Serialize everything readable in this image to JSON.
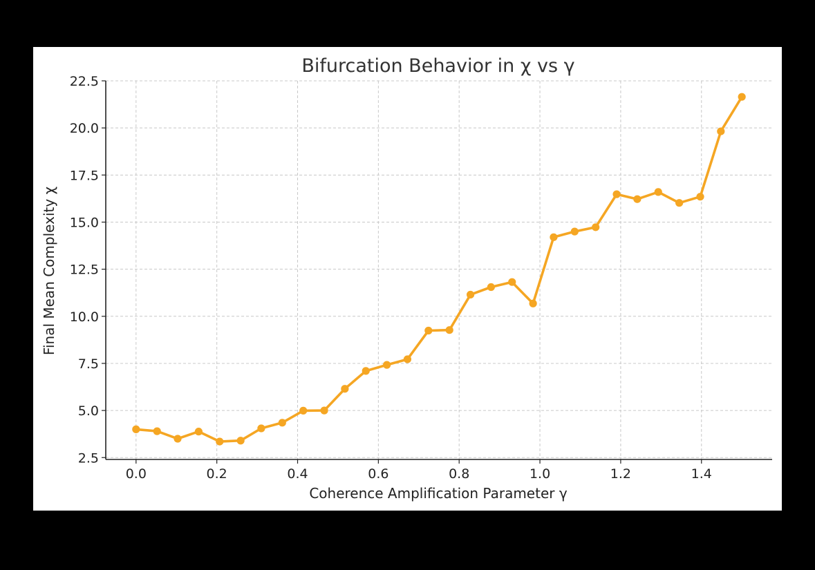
{
  "chart_data": {
    "type": "line",
    "title": "Bifurcation Behavior in χ vs γ",
    "xlabel": "Coherence Amplification Parameter γ",
    "ylabel": "Final Mean Complexity χ",
    "xlim": [
      -0.075,
      1.575
    ],
    "ylim": [
      2.4,
      22.5
    ],
    "x_ticks": [
      0.0,
      0.2,
      0.4,
      0.6,
      0.8,
      1.0,
      1.2,
      1.4
    ],
    "x_tick_labels": [
      "0.0",
      "0.2",
      "0.4",
      "0.6",
      "0.8",
      "1.0",
      "1.2",
      "1.4"
    ],
    "y_ticks": [
      2.5,
      5.0,
      7.5,
      10.0,
      12.5,
      15.0,
      17.5,
      20.0,
      22.5
    ],
    "y_tick_labels": [
      "2.5",
      "5.0",
      "7.5",
      "10.0",
      "12.5",
      "15.0",
      "17.5",
      "20.0",
      "22.5"
    ],
    "grid": true,
    "color": "#f5a623",
    "series": [
      {
        "x": [
          0.0,
          0.052,
          0.103,
          0.155,
          0.207,
          0.259,
          0.31,
          0.362,
          0.414,
          0.466,
          0.517,
          0.569,
          0.621,
          0.672,
          0.724,
          0.776,
          0.828,
          0.879,
          0.931,
          0.983,
          1.034,
          1.086,
          1.138,
          1.19,
          1.241,
          1.293,
          1.345,
          1.397,
          1.448,
          1.5
        ],
        "y": [
          4.0,
          3.9,
          3.5,
          3.88,
          3.35,
          3.4,
          4.05,
          4.35,
          4.99,
          5.0,
          6.15,
          7.1,
          7.42,
          7.72,
          9.24,
          9.27,
          11.15,
          11.55,
          11.82,
          10.68,
          14.2,
          14.5,
          14.73,
          16.48,
          16.22,
          16.6,
          16.02,
          16.35,
          19.82,
          21.65
        ]
      }
    ]
  }
}
